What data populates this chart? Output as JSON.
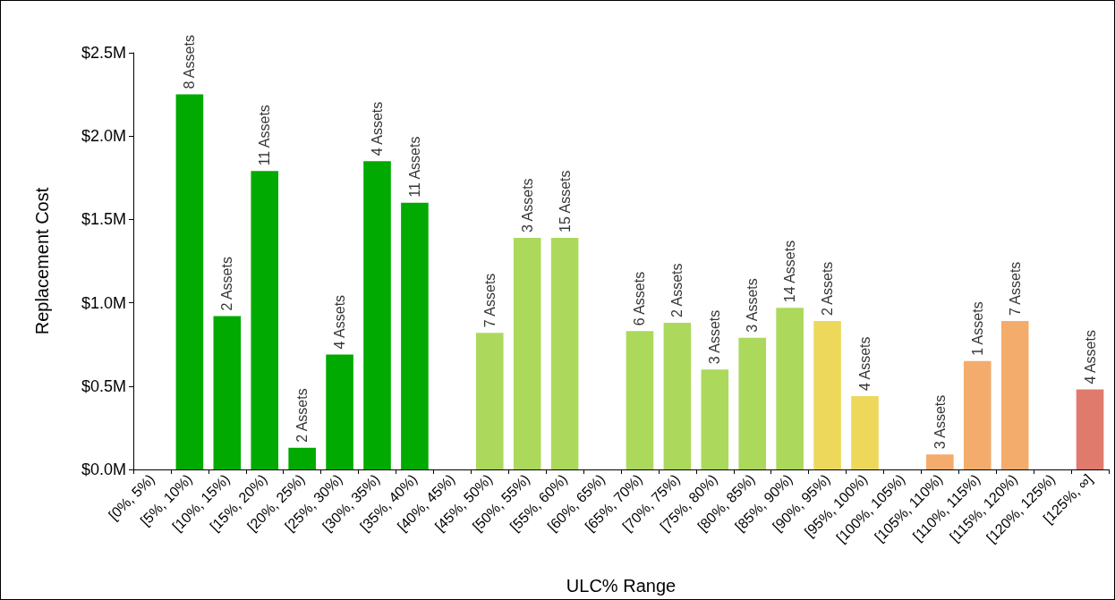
{
  "chart_data": {
    "type": "bar",
    "xlabel": "ULC% Range",
    "ylabel": "Replacement Cost",
    "categories": [
      "[0%, 5%)",
      "[5%, 10%)",
      "[10%, 15%)",
      "[15%, 20%)",
      "[20%, 25%)",
      "[25%, 30%)",
      "[30%, 35%)",
      "[35%, 40%)",
      "[40%, 45%)",
      "[45%, 50%)",
      "[50%, 55%)",
      "[55%, 60%)",
      "[60%, 65%)",
      "[65%, 70%)",
      "[70%, 75%)",
      "[75%, 80%)",
      "[80%, 85%)",
      "[85%, 90%)",
      "[90%, 95%)",
      "[95%, 100%)",
      "[100%, 105%)",
      "[105%, 110%)",
      "[110%, 115%)",
      "[115%, 120%)",
      "[120%, 125%)",
      "[125%, ∞]"
    ],
    "values": [
      null,
      2.25,
      0.92,
      1.79,
      0.13,
      0.69,
      1.85,
      1.6,
      null,
      0.82,
      1.39,
      1.39,
      null,
      0.83,
      0.88,
      0.6,
      0.79,
      0.97,
      0.89,
      0.44,
      null,
      0.09,
      0.65,
      0.89,
      null,
      0.48
    ],
    "colors": [
      null,
      "#00aa00",
      "#00aa00",
      "#00aa00",
      "#00aa00",
      "#00aa00",
      "#00aa00",
      "#00aa00",
      null,
      "#acd95c",
      "#acd95c",
      "#acd95c",
      null,
      "#acd95c",
      "#acd95c",
      "#acd95c",
      "#acd95c",
      "#acd95c",
      "#edd85c",
      "#edd85c",
      null,
      "#f4ac6c",
      "#f4ac6c",
      "#f4ac6c",
      null,
      "#e07a6c"
    ],
    "annotations": [
      {
        "text": "8 Assets",
        "x": "[5%, 10%)",
        "y": 2.25
      },
      {
        "text": "2 Assets",
        "x": "[10%, 15%)",
        "y": 0.92
      },
      {
        "text": "11 Assets",
        "x": "[15%, 20%)",
        "y": 1.79
      },
      {
        "text": "2 Assets",
        "x": "[20%, 25%)",
        "y": 0.13
      },
      {
        "text": "4 Assets",
        "x": "[25%, 30%)",
        "y": 0.69
      },
      {
        "text": "4 Assets",
        "x": "[30%, 35%)",
        "y": 1.85
      },
      {
        "text": "11 Assets",
        "x": "[35%, 40%)",
        "y": 1.6
      },
      {
        "text": "7 Assets",
        "x": "[45%, 50%)",
        "y": 0.82
      },
      {
        "text": "3 Assets",
        "x": "[50%, 55%)",
        "y": 1.39
      },
      {
        "text": "15 Assets",
        "x": "[55%, 60%)",
        "y": 1.39
      },
      {
        "text": "6 Assets",
        "x": "[65%, 70%)",
        "y": 0.83
      },
      {
        "text": "2 Assets",
        "x": "[70%, 75%)",
        "y": 0.88
      },
      {
        "text": "3 Assets",
        "x": "[75%, 80%)",
        "y": 0.6
      },
      {
        "text": "3 Assets",
        "x": "[80%, 85%)",
        "y": 0.79
      },
      {
        "text": "14 Assets",
        "x": "[85%, 90%)",
        "y": 0.97
      },
      {
        "text": "2 Assets",
        "x": "[90%, 95%)",
        "y": 0.89
      },
      {
        "text": "4 Assets",
        "x": "[95%, 100%)",
        "y": 0.44
      },
      {
        "text": "3 Assets",
        "x": "[105%, 110%)",
        "y": 0.09
      },
      {
        "text": "1 Assets",
        "x": "[110%, 115%)",
        "y": 0.65
      },
      {
        "text": "7 Assets",
        "x": "[115%, 120%)",
        "y": 0.89
      },
      {
        "text": "4 Assets",
        "x": "[125%, ∞]",
        "y": 0.48
      }
    ],
    "ylim": [
      0,
      2.5
    ],
    "yticks": [
      {
        "value": 0,
        "label": "$0.0M"
      },
      {
        "value": 0.5,
        "label": "$0.5M"
      },
      {
        "value": 1,
        "label": "$1.0M"
      },
      {
        "value": 1.5,
        "label": "$1.5M"
      },
      {
        "value": 2,
        "label": "$2.0M"
      },
      {
        "value": 2.5,
        "label": "$2.5M"
      }
    ],
    "grid": false
  }
}
